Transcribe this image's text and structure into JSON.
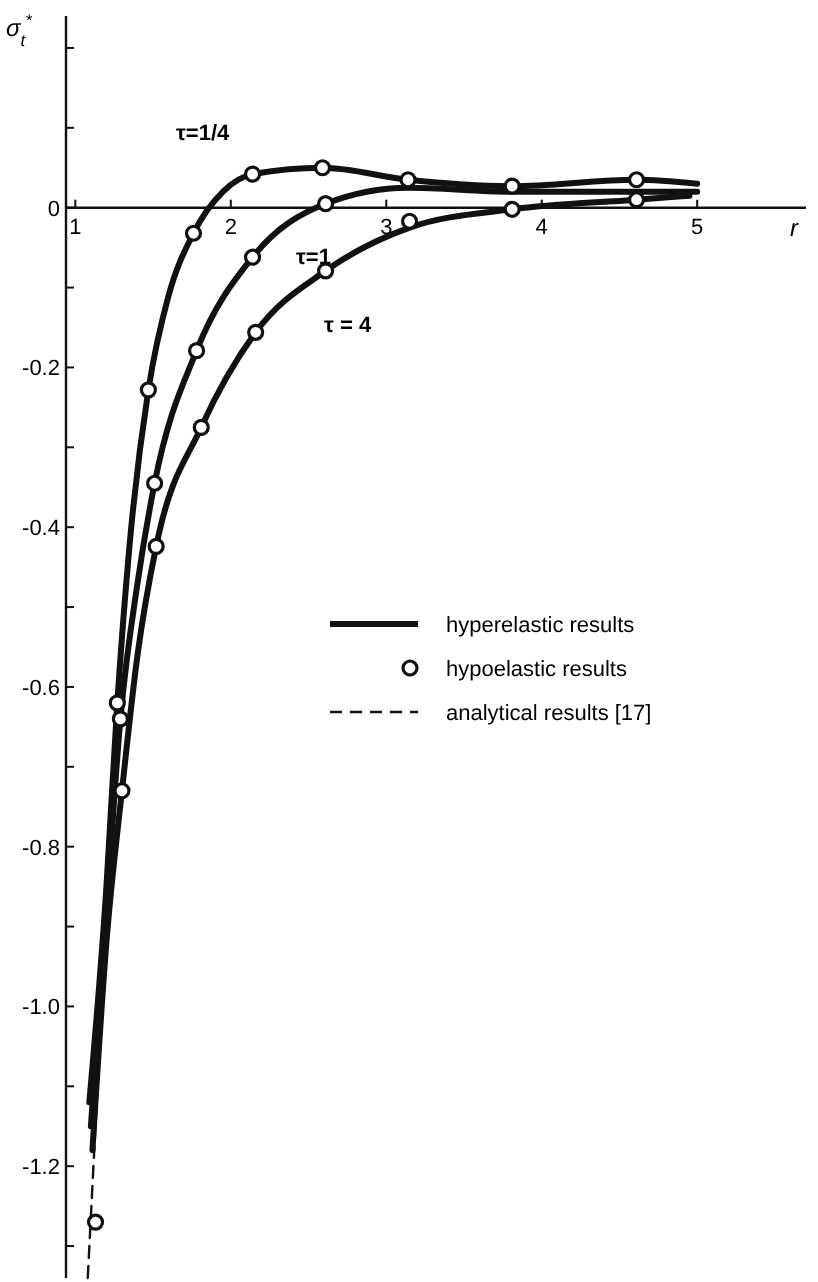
{
  "chart_data": {
    "type": "line",
    "xlabel": "r",
    "ylabel": "σ$_{t}$$^{*}$",
    "xlim": [
      0.94,
      5.7
    ],
    "ylim": [
      -1.34,
      0.24
    ],
    "xticks": [
      1,
      2,
      3,
      4,
      5
    ],
    "yticks": [
      {
        "value": 0.2,
        "label": null
      },
      {
        "value": 0.1,
        "label": null
      },
      0,
      {
        "value": -0.1,
        "label": null
      },
      -0.2,
      {
        "value": -0.3,
        "label": null
      },
      -0.4,
      {
        "value": -0.5,
        "label": null
      },
      -0.6,
      {
        "value": -0.7,
        "label": null
      },
      -0.8,
      {
        "value": -0.9,
        "label": null
      },
      {
        "value": -1,
        "label": "-1.0"
      },
      {
        "value": -1.1,
        "label": null
      },
      -1.2,
      {
        "value": -1.3,
        "label": null
      }
    ],
    "grid": false,
    "legend": "right",
    "series": [
      {
        "name": "hyperelastic results",
        "color": "#111111",
        "line_style": "solid",
        "marker": "none",
        "x": [
          1.09,
          1.2,
          1.27,
          1.35,
          1.47,
          1.6,
          1.76,
          1.95,
          2.14,
          2.59,
          3.14,
          3.81,
          4.61,
          5.0
        ],
        "values": [
          -1.12,
          -0.85,
          -0.62,
          -0.42,
          -0.228,
          -0.11,
          -0.032,
          0.02,
          0.042,
          0.05,
          0.035,
          0.027,
          0.035,
          0.03
        ]
      },
      {
        "color": "#111111",
        "line_style": "solid",
        "marker": "none",
        "x": [
          1.1,
          1.2,
          1.29,
          1.4,
          1.51,
          1.78,
          2.14,
          2.61,
          3.14,
          3.81,
          4.61,
          5.0
        ],
        "values": [
          -1.15,
          -0.88,
          -0.64,
          -0.47,
          -0.345,
          -0.179,
          -0.062,
          0.005,
          0.025,
          0.02,
          0.02,
          0.02
        ]
      },
      {
        "color": "#111111",
        "line_style": "solid",
        "marker": "none",
        "x": [
          1.11,
          1.2,
          1.3,
          1.4,
          1.52,
          1.81,
          2.16,
          2.61,
          3.15,
          3.81,
          4.61,
          4.95
        ],
        "values": [
          -1.18,
          -0.92,
          -0.73,
          -0.56,
          -0.424,
          -0.275,
          -0.156,
          -0.079,
          -0.025,
          -0.002,
          0.01,
          0.015
        ]
      },
      {
        "name": "hypoelastic results",
        "type": "scatter",
        "color": "#111111",
        "marker": "circle",
        "x": [
          1.47,
          1.76,
          2.14,
          2.59,
          3.14,
          3.81,
          4.61,
          1.27,
          1.29,
          1.3,
          1.51,
          1.52,
          1.81,
          1.78,
          2.14,
          2.61,
          2.16,
          2.61,
          3.15,
          3.81,
          4.61,
          1.13
        ],
        "values": [
          -0.228,
          -0.032,
          0.042,
          0.05,
          0.035,
          0.027,
          0.035,
          -0.62,
          -0.64,
          -0.73,
          -0.345,
          -0.424,
          -0.275,
          -0.179,
          -0.062,
          0.005,
          -0.156,
          -0.079,
          -0.017,
          -0.002,
          0.01,
          -1.27
        ]
      },
      {
        "name": "analytical results [17]",
        "type": "line",
        "color": "#111111",
        "line_style": "dashed",
        "marker": "none",
        "x": [
          1.08,
          1.13,
          1.2
        ],
        "values": [
          -1.34,
          -1.15,
          -0.9
        ]
      }
    ],
    "annotations": [
      "τ=1/4",
      "τ=1",
      "τ = 4"
    ]
  }
}
